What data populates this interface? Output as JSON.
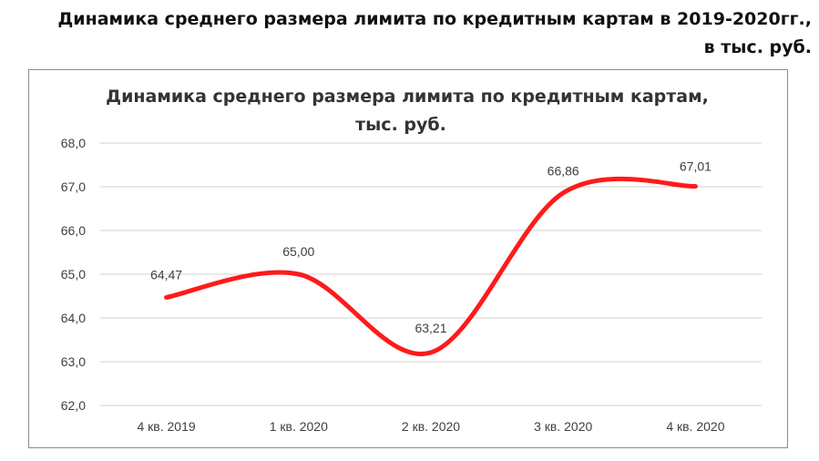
{
  "page": {
    "heading_line1": "Динамика среднего размера лимита по кредитным картам в 2019-2020гг.,",
    "heading_line2": "в тыс. руб."
  },
  "chart_data": {
    "type": "line",
    "title_line1": "Динамика среднего размера лимита по кредитным картам,",
    "title_line2": "тыс. руб.",
    "categories": [
      "4 кв. 2019",
      "1 кв. 2020",
      "2 кв. 2020",
      "3 кв. 2020",
      "4 кв. 2020"
    ],
    "series": [
      {
        "values": [
          64.47,
          65.0,
          63.21,
          66.86,
          67.01
        ],
        "labels": [
          "64,47",
          "65,00",
          "63,21",
          "66,86",
          "67,01"
        ],
        "color": "#ff1a1a",
        "smooth": true
      }
    ],
    "yticks": [
      "62,0",
      "63,0",
      "64,0",
      "65,0",
      "66,0",
      "67,0",
      "68,0"
    ],
    "ylim": [
      62,
      68
    ],
    "grid": true,
    "legend": "none"
  }
}
